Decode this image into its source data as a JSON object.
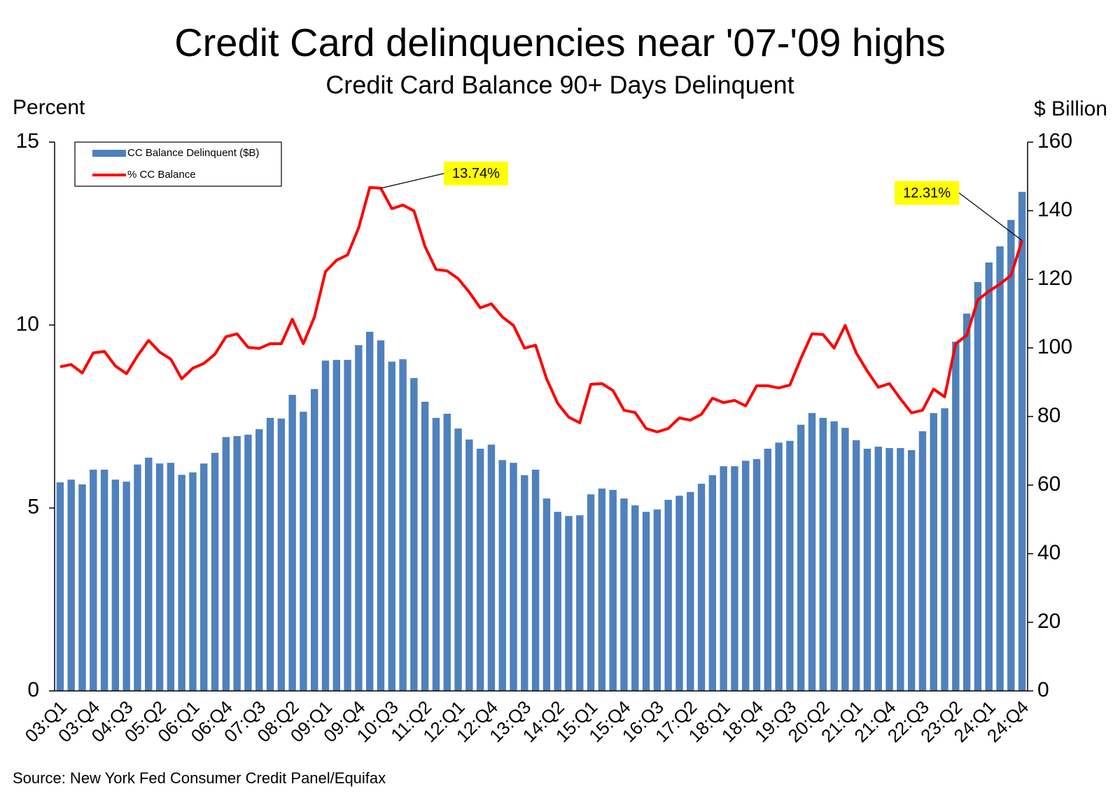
{
  "chart_data": {
    "type": "bar_line",
    "title": "Credit Card delinquencies near '07-'09 highs",
    "subtitle": "Credit Card Balance 90+ Days Delinquent",
    "y_label": "Percent",
    "y2_label": "$ Billion",
    "source": "Source: New York Fed Consumer Credit Panel/Equifax",
    "categories": [
      "03:Q1",
      null,
      null,
      "03:Q4",
      null,
      null,
      "04:Q3",
      null,
      null,
      "05:Q2",
      null,
      null,
      "06:Q1",
      null,
      null,
      "06:Q4",
      null,
      null,
      "07:Q3",
      null,
      null,
      "08:Q2",
      null,
      null,
      "09:Q1",
      null,
      null,
      "09:Q4",
      null,
      null,
      "10:Q3",
      null,
      null,
      "11:Q2",
      null,
      null,
      "12:Q1",
      null,
      null,
      "12:Q4",
      null,
      null,
      "13:Q3",
      null,
      null,
      "14:Q2",
      null,
      null,
      "15:Q1",
      null,
      null,
      "15:Q4",
      null,
      null,
      "16:Q3",
      null,
      null,
      "17:Q2",
      null,
      null,
      "18:Q1",
      null,
      null,
      "18:Q4",
      null,
      null,
      "19:Q3",
      null,
      null,
      "20:Q2",
      null,
      null,
      "21:Q1",
      null,
      null,
      "21:Q4",
      null,
      null,
      "22:Q3",
      null,
      null,
      "23:Q2",
      null,
      null,
      "24:Q1",
      null,
      null,
      "24:Q4"
    ],
    "series": [
      {
        "name": "CC Balance Delinquent ($B)",
        "type": "bar",
        "axis": "y2",
        "color": "#4f81bd",
        "values": [
          60.8,
          61.6,
          60.2,
          64.5,
          64.5,
          61.6,
          61,
          66,
          68,
          66.3,
          66.5,
          63,
          63.7,
          66.3,
          69.4,
          74,
          74.3,
          74.7,
          76.3,
          79.6,
          79.4,
          86.3,
          81.4,
          88,
          96.3,
          96.5,
          96.5,
          100.8,
          104.7,
          102.2,
          96,
          96.7,
          91.2,
          84.3,
          79.6,
          80.8,
          76.5,
          73.3,
          70.6,
          71.8,
          67.3,
          66.5,
          62.9,
          64.5,
          56.1,
          52.2,
          51,
          51.2,
          57.3,
          59,
          58.6,
          56.1,
          54.1,
          52.2,
          52.9,
          55.7,
          56.9,
          58,
          60.4,
          62.9,
          65.5,
          65.5,
          67.1,
          67.6,
          70.6,
          72.4,
          72.9,
          77.6,
          81,
          79.6,
          78.6,
          76.7,
          73.1,
          70.6,
          71.2,
          70.8,
          70.8,
          70.2,
          75.7,
          81,
          82.4,
          101.8,
          110,
          119.2,
          124.9,
          129.6,
          137.3,
          145.5
        ]
      },
      {
        "name": "% CC Balance",
        "type": "line",
        "axis": "y",
        "color": "#ff0000",
        "values": [
          8.86,
          8.92,
          8.69,
          9.24,
          9.28,
          8.88,
          8.67,
          9.16,
          9.58,
          9.26,
          9.07,
          8.53,
          8.82,
          8.95,
          9.2,
          9.68,
          9.76,
          9.39,
          9.36,
          9.49,
          9.49,
          10.16,
          9.49,
          10.22,
          11.46,
          11.77,
          11.92,
          12.66,
          13.76,
          13.74,
          13.18,
          13.28,
          13.12,
          12.15,
          11.52,
          11.48,
          11.27,
          10.9,
          10.47,
          10.58,
          10.22,
          9.99,
          9.37,
          9.45,
          8.53,
          7.86,
          7.48,
          7.33,
          8.38,
          8.4,
          8.21,
          7.67,
          7.61,
          7.17,
          7.08,
          7.17,
          7.46,
          7.4,
          7.56,
          8.0,
          7.88,
          7.94,
          7.79,
          8.34,
          8.34,
          8.28,
          8.36,
          9.09,
          9.76,
          9.74,
          9.37,
          9.99,
          9.24,
          8.74,
          8.3,
          8.4,
          7.98,
          7.6,
          7.67,
          8.25,
          8.04,
          9.49,
          9.72,
          10.69,
          10.92,
          11.12,
          11.36,
          12.31
        ],
        "value_labels": [
          null,
          null,
          null,
          null,
          null,
          null,
          null,
          null,
          null,
          null,
          null,
          null,
          null,
          null,
          null,
          null,
          null,
          null,
          null,
          null,
          null,
          null,
          null,
          null,
          null,
          null,
          null,
          null,
          null,
          "13.74%",
          null,
          null,
          null,
          null,
          null,
          null,
          null,
          null,
          null,
          null,
          null,
          null,
          null,
          null,
          null,
          null,
          null,
          null,
          null,
          null,
          null,
          null,
          null,
          null,
          null,
          null,
          null,
          null,
          null,
          null,
          null,
          null,
          null,
          null,
          null,
          null,
          null,
          null,
          null,
          null,
          null,
          null,
          null,
          null,
          null,
          null,
          null,
          null,
          null,
          null,
          null,
          null,
          null,
          null,
          null,
          null,
          null,
          "12.31%"
        ]
      }
    ],
    "ylim": [
      0,
      15
    ],
    "yticks": [
      0,
      5,
      10,
      15
    ],
    "y2lim": [
      0,
      160
    ],
    "y2ticks": [
      0,
      20,
      40,
      60,
      80,
      100,
      120,
      140,
      160
    ],
    "legend": "upper left",
    "annotation_color": "#ffff00"
  }
}
